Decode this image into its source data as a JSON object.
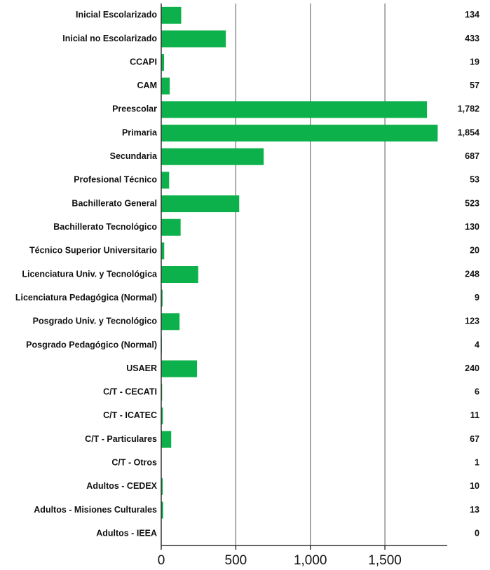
{
  "chart_data": {
    "type": "bar",
    "orientation": "horizontal",
    "categories": [
      "Inicial Escolarizado",
      "Inicial no Escolarizado",
      "CCAPI",
      "CAM",
      "Preescolar",
      "Primaria",
      "Secundaria",
      "Profesional Técnico",
      "Bachillerato General",
      "Bachillerato Tecnológico",
      "Técnico Superior Universitario",
      "Licenciatura Univ. y Tecnológica",
      "Licenciatura Pedagógica (Normal)",
      "Posgrado Univ. y Tecnológico",
      "Posgrado Pedagógico (Normal)",
      "USAER",
      "C/T - CECATI",
      "C/T - ICATEC",
      "C/T - Particulares",
      "C/T - Otros",
      "Adultos - CEDEX",
      "Adultos - Misiones Culturales",
      "Adultos - IEEA"
    ],
    "values": [
      134,
      433,
      19,
      57,
      1782,
      1854,
      687,
      53,
      523,
      130,
      20,
      248,
      9,
      123,
      4,
      240,
      6,
      11,
      67,
      1,
      10,
      13,
      0
    ],
    "value_labels": [
      "134",
      "433",
      "19",
      "57",
      "1,782",
      "1,854",
      "687",
      "53",
      "523",
      "130",
      "20",
      "248",
      "9",
      "123",
      "4",
      "240",
      "6",
      "11",
      "67",
      "1",
      "10",
      "13",
      "0"
    ],
    "color": "#0cb14b",
    "xlim": [
      0,
      1918
    ],
    "xticks": [
      0,
      500,
      {
        "value": 1000,
        "label": "1,000"
      },
      {
        "value": 1500,
        "label": "1,500"
      }
    ],
    "grid": true
  }
}
